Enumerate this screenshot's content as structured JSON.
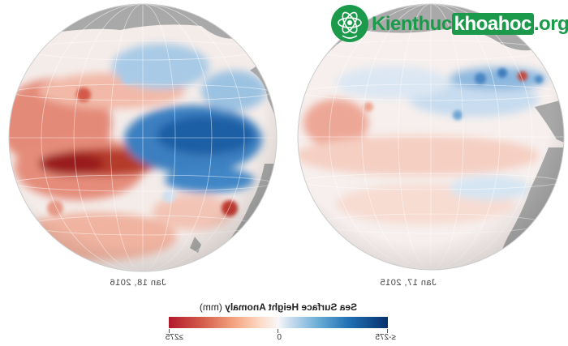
{
  "maps": [
    {
      "date_label": "Jan 18, 2016"
    },
    {
      "date_label": "Jan 17, 2015"
    }
  ],
  "legend": {
    "title_bold": "Sea Surface Height Anomaly",
    "title_unit": "(mm)",
    "ticks": [
      "≤-275",
      "0",
      "≥275"
    ],
    "colors": {
      "low": "#08306b",
      "mid": "#f7f7f7",
      "high": "#b2182b"
    }
  },
  "watermark": {
    "part1": "Kienthuc",
    "part2": "khoahoc",
    "part3": ".org"
  },
  "colors": {
    "land": "#a9a9a9",
    "ocean_bg": "#f3efee"
  }
}
